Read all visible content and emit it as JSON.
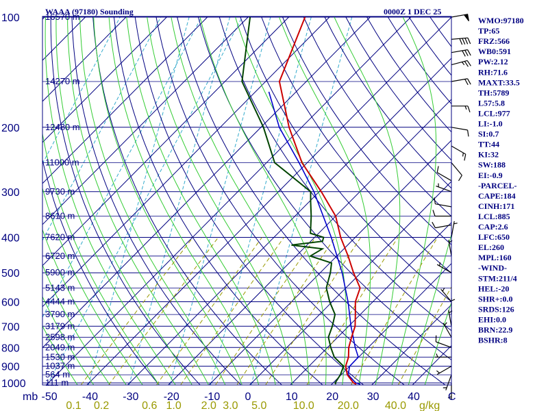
{
  "header": {
    "station_title": "WAAA (97180) Sounding",
    "valid_time": "0000Z  1 DEC 25"
  },
  "chart_data": {
    "type": "skew-t",
    "title": "WAAA (97180) Sounding",
    "pressure_unit_label": "mb",
    "mixing_ratio_unit_label": "g/kg",
    "pressure_levels": [
      100,
      200,
      300,
      400,
      500,
      600,
      700,
      800,
      900,
      1000
    ],
    "pressure_labels": [
      "100",
      "200",
      "300",
      "400",
      "500",
      "600",
      "700",
      "800",
      "900",
      "1000"
    ],
    "temperature_ticks": [
      -50,
      -40,
      -30,
      -20,
      -10,
      0,
      10,
      20,
      30,
      40
    ],
    "temperature_tick_labels": [
      "-50",
      "-40",
      "-30",
      "-20",
      "-10",
      "0",
      "10",
      "20",
      "30",
      "40"
    ],
    "temperature_unit_label": "C",
    "mixing_ratio_ticks": [
      0.1,
      0.2,
      0.6,
      1.0,
      2.0,
      3.0,
      5.0,
      10.0,
      20.0,
      40.0
    ],
    "mixing_ratio_labels": [
      "0.1",
      "0.2",
      "0.6",
      "1.0",
      "2.0",
      "3.0",
      "5.0",
      "10.0",
      "20.0",
      "40.0"
    ],
    "height_labels": [
      {
        "p": 100,
        "label": "16570 m"
      },
      {
        "p": 150,
        "label": "14270 m"
      },
      {
        "p": 200,
        "label": "12480 m"
      },
      {
        "p": 250,
        "label": "11000 m"
      },
      {
        "p": 300,
        "label": "9730 m"
      },
      {
        "p": 350,
        "label": "8610 m"
      },
      {
        "p": 400,
        "label": "7620 m"
      },
      {
        "p": 450,
        "label": "6720 m"
      },
      {
        "p": 500,
        "label": "5900 m"
      },
      {
        "p": 550,
        "label": "5143 m"
      },
      {
        "p": 600,
        "label": "4444 m"
      },
      {
        "p": 650,
        "label": "3790 m"
      },
      {
        "p": 700,
        "label": "3179 m"
      },
      {
        "p": 750,
        "label": "2598 m"
      },
      {
        "p": 800,
        "label": "2049 m"
      },
      {
        "p": 850,
        "label": "1530 m"
      },
      {
        "p": 900,
        "label": "1037 m"
      },
      {
        "p": 950,
        "label": "564 m"
      },
      {
        "p": 1000,
        "label": "111 m"
      }
    ],
    "temperature_profile": [
      [
        1008,
        26
      ],
      [
        1000,
        25
      ],
      [
        950,
        21.5
      ],
      [
        900,
        19
      ],
      [
        850,
        17.5
      ],
      [
        800,
        15.2
      ],
      [
        750,
        13.4
      ],
      [
        700,
        11.6
      ],
      [
        650,
        8.8
      ],
      [
        600,
        5.7
      ],
      [
        550,
        3.5
      ],
      [
        500,
        -1.8
      ],
      [
        450,
        -7.2
      ],
      [
        400,
        -13.6
      ],
      [
        350,
        -20
      ],
      [
        300,
        -29.5
      ],
      [
        250,
        -41.3
      ],
      [
        200,
        -53.1
      ],
      [
        150,
        -66.6
      ],
      [
        100,
        -76
      ]
    ],
    "dewpoint_profile": [
      [
        1008,
        21
      ],
      [
        1000,
        20.5
      ],
      [
        950,
        19.8
      ],
      [
        900,
        18.5
      ],
      [
        850,
        14
      ],
      [
        800,
        10.8
      ],
      [
        750,
        7.7
      ],
      [
        700,
        6
      ],
      [
        650,
        3.8
      ],
      [
        600,
        -0.6
      ],
      [
        550,
        -4.8
      ],
      [
        500,
        -7.5
      ],
      [
        470,
        -9.6
      ],
      [
        450,
        -16.5
      ],
      [
        430,
        -15.3
      ],
      [
        420,
        -23.8
      ],
      [
        410,
        -17.1
      ],
      [
        400,
        -17.8
      ],
      [
        390,
        -22
      ],
      [
        350,
        -26
      ],
      [
        320,
        -29.6
      ],
      [
        300,
        -32.1
      ],
      [
        250,
        -48
      ],
      [
        200,
        -59.4
      ],
      [
        150,
        -75.8
      ],
      [
        100,
        -89.5
      ]
    ],
    "parcel_profile": [
      [
        1008,
        27
      ],
      [
        1000,
        25.6
      ],
      [
        950,
        21.7
      ],
      [
        900,
        20
      ],
      [
        850,
        19.9
      ],
      [
        800,
        16.8
      ],
      [
        700,
        10.6
      ],
      [
        600,
        3.9
      ],
      [
        500,
        -4.6
      ],
      [
        400,
        -15.9
      ],
      [
        300,
        -31.3
      ],
      [
        250,
        -42
      ],
      [
        200,
        -55.5
      ],
      [
        160,
        -66.7
      ]
    ],
    "wind_barbs": [
      {
        "p": 100,
        "dir": 80,
        "spd": 50
      },
      {
        "p": 115,
        "dir": 85,
        "spd": 40
      },
      {
        "p": 125,
        "dir": 80,
        "spd": 30
      },
      {
        "p": 135,
        "dir": 75,
        "spd": 25
      },
      {
        "p": 150,
        "dir": 80,
        "spd": 20
      },
      {
        "p": 175,
        "dir": 90,
        "spd": 15
      },
      {
        "p": 200,
        "dir": 100,
        "spd": 10
      },
      {
        "p": 225,
        "dir": 120,
        "spd": 15
      },
      {
        "p": 250,
        "dir": 140,
        "spd": 10
      },
      {
        "p": 280,
        "dir": 300,
        "spd": 10
      },
      {
        "p": 300,
        "dir": 290,
        "spd": 5
      },
      {
        "p": 330,
        "dir": 280,
        "spd": 10
      },
      {
        "p": 350,
        "dir": 270,
        "spd": 10
      },
      {
        "p": 370,
        "dir": 260,
        "spd": 10
      },
      {
        "p": 400,
        "dir": 10,
        "spd": 5
      },
      {
        "p": 450,
        "dir": 350,
        "spd": 5
      },
      {
        "p": 500,
        "dir": 300,
        "spd": 5
      },
      {
        "p": 600,
        "dir": 320,
        "spd": 5
      },
      {
        "p": 650,
        "dir": 0,
        "spd": 5
      },
      {
        "p": 700,
        "dir": 350,
        "spd": 5
      },
      {
        "p": 750,
        "dir": 330,
        "spd": 5
      },
      {
        "p": 800,
        "dir": 290,
        "spd": 10
      },
      {
        "p": 850,
        "dir": 270,
        "spd": 5
      },
      {
        "p": 900,
        "dir": 240,
        "spd": 5
      },
      {
        "p": 950,
        "dir": 200,
        "spd": 5
      },
      {
        "p": 1000,
        "dir": 180,
        "spd": 5
      }
    ]
  },
  "indices": [
    "WMO:97180",
    "TP:65",
    "FRZ:566",
    "WB0:591",
    "PW:2.12",
    "RH:71.6",
    "MAXT:33.5",
    "TH:5789",
    "L57:5.8",
    "LCL:977",
    "LI:-1.0",
    "SI:0.7",
    "TT:44",
    "KI:32",
    "SW:188",
    "EI:-0.9",
    "-PARCEL-",
    "CAPE:184",
    "CINH:171",
    "LCL:885",
    "CAP:2.6",
    "LFC:650",
    "EL:260",
    "MPL:160",
    "-WIND-",
    "STM:211/4",
    "HEL:-20",
    "SHR+:0.0",
    "SRDS:126",
    "EHI:0.0",
    "BRN:22.9",
    "BSHR:8"
  ],
  "colors": {
    "frame": "#000080",
    "isobar": "#000080",
    "isotherm": "#000080",
    "dry_adiabat": "#000080",
    "moist_adiabat": "#33cc33",
    "mixing_ratio": "#999900",
    "saturation": "#33aacc",
    "temperature": "#cc0000",
    "dewpoint": "#004400",
    "parcel": "#0000cc",
    "wind": "#000000",
    "text": "#000080"
  }
}
